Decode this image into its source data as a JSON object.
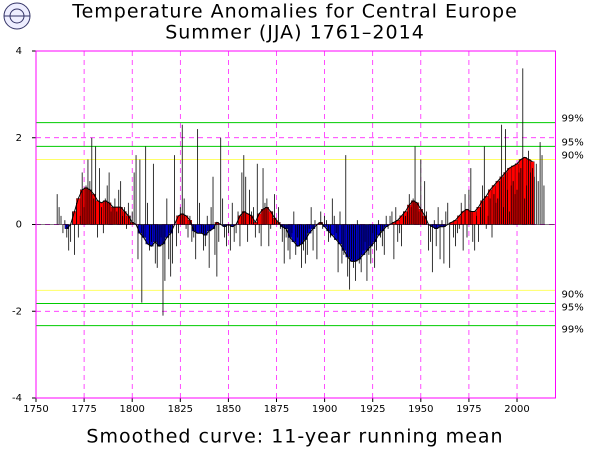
{
  "chart_data": {
    "type": "anomaly-bars",
    "title": "Temperature Anomalies for Central Europe",
    "subtitle": "Summer (JJA) 1761–2014",
    "footer": "Smoothed curve: 11-year running mean",
    "xlim": [
      1750,
      2020
    ],
    "xticks": [
      1750,
      1775,
      1800,
      1825,
      1850,
      1875,
      1900,
      1925,
      1950,
      1975,
      2000
    ],
    "ylim": [
      -4,
      4
    ],
    "yticks": [
      -4,
      -2,
      0,
      2,
      4
    ],
    "grid": true,
    "grid_color": "#ff00ff",
    "frame_color": "#ff00ff",
    "thresholds": [
      {
        "value": 2.35,
        "label": "99%",
        "color": "#00cc00"
      },
      {
        "value": 1.8,
        "label": "95%",
        "color": "#00cc00"
      },
      {
        "value": 1.5,
        "label": "90%",
        "color": "#ffff66"
      },
      {
        "value": -1.52,
        "label": "90%",
        "color": "#ffff66"
      },
      {
        "value": -1.82,
        "label": "95%",
        "color": "#00cc00"
      },
      {
        "value": -2.33,
        "label": "99%",
        "color": "#00cc00"
      }
    ],
    "annual": {
      "color": "#000000",
      "x": [
        1761,
        1762,
        1763,
        1764,
        1765,
        1766,
        1767,
        1768,
        1769,
        1770,
        1771,
        1772,
        1773,
        1774,
        1775,
        1776,
        1777,
        1778,
        1779,
        1780,
        1781,
        1782,
        1783,
        1784,
        1785,
        1786,
        1787,
        1788,
        1789,
        1790,
        1791,
        1792,
        1793,
        1794,
        1795,
        1796,
        1797,
        1798,
        1799,
        1800,
        1801,
        1802,
        1803,
        1804,
        1805,
        1806,
        1807,
        1808,
        1809,
        1810,
        1811,
        1812,
        1813,
        1814,
        1815,
        1816,
        1817,
        1818,
        1819,
        1820,
        1821,
        1822,
        1823,
        1824,
        1825,
        1826,
        1827,
        1828,
        1829,
        1830,
        1831,
        1832,
        1833,
        1834,
        1835,
        1836,
        1837,
        1838,
        1839,
        1840,
        1841,
        1842,
        1843,
        1844,
        1845,
        1846,
        1847,
        1848,
        1849,
        1850,
        1851,
        1852,
        1853,
        1854,
        1855,
        1856,
        1857,
        1858,
        1859,
        1860,
        1861,
        1862,
        1863,
        1864,
        1865,
        1866,
        1867,
        1868,
        1869,
        1870,
        1871,
        1872,
        1873,
        1874,
        1875,
        1876,
        1877,
        1878,
        1879,
        1880,
        1881,
        1882,
        1883,
        1884,
        1885,
        1886,
        1887,
        1888,
        1889,
        1890,
        1891,
        1892,
        1893,
        1894,
        1895,
        1896,
        1897,
        1898,
        1899,
        1900,
        1901,
        1902,
        1903,
        1904,
        1905,
        1906,
        1907,
        1908,
        1909,
        1910,
        1911,
        1912,
        1913,
        1914,
        1915,
        1916,
        1917,
        1918,
        1919,
        1920,
        1921,
        1922,
        1923,
        1924,
        1925,
        1926,
        1927,
        1928,
        1929,
        1930,
        1931,
        1932,
        1933,
        1934,
        1935,
        1936,
        1937,
        1938,
        1939,
        1940,
        1941,
        1942,
        1943,
        1944,
        1945,
        1946,
        1947,
        1948,
        1949,
        1950,
        1951,
        1952,
        1953,
        1954,
        1955,
        1956,
        1957,
        1958,
        1959,
        1960,
        1961,
        1962,
        1963,
        1964,
        1965,
        1966,
        1967,
        1968,
        1969,
        1970,
        1971,
        1972,
        1973,
        1974,
        1975,
        1976,
        1977,
        1978,
        1979,
        1980,
        1981,
        1982,
        1983,
        1984,
        1985,
        1986,
        1987,
        1988,
        1989,
        1990,
        1991,
        1992,
        1993,
        1994,
        1995,
        1996,
        1997,
        1998,
        1999,
        2000,
        2001,
        2002,
        2003,
        2004,
        2005,
        2006,
        2007,
        2008,
        2009,
        2010,
        2011,
        2012,
        2013,
        2014
      ],
      "values": [
        0.7,
        0.4,
        0.2,
        -0.2,
        0.1,
        -0.3,
        -0.6,
        -0.4,
        0.3,
        -0.7,
        0.5,
        -0.3,
        0.2,
        1.2,
        0.4,
        0.9,
        1.5,
        1.0,
        2.0,
        0.6,
        1.8,
        -0.3,
        1.3,
        0.4,
        -0.2,
        0.6,
        0.9,
        1.2,
        0.3,
        0.4,
        0.6,
        0.3,
        0.8,
        1.0,
        0.2,
        0.4,
        -0.1,
        0.5,
        0.2,
        0.3,
        1.2,
        1.6,
        -0.8,
        1.5,
        -1.8,
        -0.3,
        1.8,
        0.5,
        -0.6,
        -0.4,
        1.4,
        -0.9,
        -1.0,
        -0.5,
        -0.3,
        -2.1,
        -1.3,
        0.6,
        -0.8,
        -1.2,
        -0.9,
        1.6,
        -0.5,
        -0.2,
        0.4,
        2.3,
        0.6,
        -0.1,
        -0.3,
        0.2,
        -0.4,
        -0.3,
        -0.8,
        2.2,
        0.5,
        -0.2,
        -0.6,
        -0.5,
        0.2,
        -1.0,
        0.4,
        1.1,
        -0.7,
        -1.2,
        -0.4,
        2.0,
        0.6,
        -0.3,
        -0.5,
        -0.2,
        -0.6,
        0.5,
        -0.4,
        -0.2,
        0.3,
        -0.5,
        1.2,
        1.6,
        1.1,
        -0.4,
        0.8,
        0.3,
        0.4,
        -0.3,
        1.4,
        -0.2,
        -0.5,
        1.3,
        0.5,
        0.6,
        -0.5,
        -0.1,
        0.3,
        0.7,
        0.1,
        0.4,
        -0.1,
        -0.4,
        -0.9,
        -0.3,
        -0.6,
        -0.8,
        -0.2,
        0.3,
        -0.7,
        -0.3,
        -0.5,
        -1.0,
        -0.6,
        -0.9,
        -0.7,
        -0.1,
        0.4,
        -0.6,
        0.1,
        -0.8,
        0.0,
        0.3,
        -0.1,
        0.2,
        0.1,
        -0.4,
        -0.3,
        0.6,
        0.2,
        -0.2,
        -1.1,
        0.3,
        -0.9,
        -0.7,
        1.6,
        -1.2,
        -1.5,
        -0.8,
        -1.0,
        -1.3,
        0.1,
        -0.9,
        -1.1,
        -0.6,
        -0.4,
        -1.3,
        -0.7,
        -0.9,
        -0.2,
        -1.0,
        -0.6,
        0.1,
        -0.3,
        -0.5,
        -0.7,
        0.2,
        -0.1,
        0.2,
        0.3,
        -0.8,
        0.4,
        -0.4,
        -0.2,
        -0.5,
        0.3,
        0.2,
        0.3,
        0.7,
        0.4,
        0.6,
        1.8,
        0.5,
        0.3,
        1.5,
        0.2,
        1.0,
        0.3,
        -0.6,
        -0.4,
        -1.1,
        0.1,
        -0.5,
        0.4,
        -0.8,
        0.1,
        -0.9,
        0.3,
        0.5,
        -1.0,
        0.0,
        -0.3,
        -0.5,
        -0.2,
        -0.1,
        0.5,
        -0.6,
        0.7,
        -0.3,
        0.8,
        1.3,
        -0.4,
        -0.6,
        0.2,
        -0.4,
        0.4,
        0.9,
        1.8,
        -0.1,
        0.2,
        0.6,
        -0.3,
        0.7,
        0.5,
        0.6,
        1.0,
        2.3,
        0.4,
        2.2,
        0.8,
        0.3,
        0.9,
        1.0,
        0.7,
        0.8,
        1.2,
        1.3,
        3.6,
        0.6,
        0.9,
        1.7,
        1.2,
        1.3,
        1.1,
        1.4,
        1.0,
        1.9,
        1.6,
        0.9
      ]
    },
    "smoothed": {
      "color_positive": "#ff0000",
      "color_negative": "#0000cc",
      "line_color": "#000000",
      "x": [
        1766,
        1768,
        1770,
        1772,
        1774,
        1776,
        1778,
        1780,
        1782,
        1784,
        1786,
        1788,
        1790,
        1792,
        1794,
        1796,
        1798,
        1800,
        1802,
        1804,
        1806,
        1808,
        1810,
        1812,
        1814,
        1816,
        1818,
        1820,
        1822,
        1824,
        1826,
        1828,
        1830,
        1832,
        1834,
        1836,
        1838,
        1840,
        1842,
        1844,
        1846,
        1848,
        1850,
        1852,
        1854,
        1856,
        1858,
        1860,
        1862,
        1864,
        1866,
        1868,
        1870,
        1872,
        1874,
        1876,
        1878,
        1880,
        1882,
        1884,
        1886,
        1888,
        1890,
        1892,
        1894,
        1896,
        1898,
        1900,
        1902,
        1904,
        1906,
        1908,
        1910,
        1912,
        1914,
        1916,
        1918,
        1920,
        1922,
        1924,
        1926,
        1928,
        1930,
        1932,
        1934,
        1936,
        1938,
        1940,
        1942,
        1944,
        1946,
        1948,
        1950,
        1952,
        1954,
        1956,
        1958,
        1960,
        1962,
        1964,
        1966,
        1968,
        1970,
        1972,
        1974,
        1976,
        1978,
        1980,
        1982,
        1984,
        1986,
        1988,
        1990,
        1992,
        1994,
        1996,
        1998,
        2000,
        2002,
        2004,
        2006,
        2008
      ],
      "values": [
        -0.1,
        0.0,
        0.3,
        0.6,
        0.8,
        0.85,
        0.8,
        0.7,
        0.55,
        0.5,
        0.55,
        0.5,
        0.4,
        0.4,
        0.4,
        0.3,
        0.2,
        0.05,
        0.0,
        -0.2,
        -0.3,
        -0.45,
        -0.5,
        -0.4,
        -0.5,
        -0.45,
        -0.3,
        -0.2,
        0.0,
        0.2,
        0.25,
        0.2,
        0.1,
        -0.15,
        -0.2,
        -0.2,
        -0.25,
        -0.15,
        -0.1,
        0.05,
        0.0,
        -0.05,
        0.0,
        -0.05,
        0.0,
        0.2,
        0.3,
        0.25,
        0.2,
        0.05,
        0.25,
        0.35,
        0.4,
        0.3,
        0.15,
        0.05,
        -0.05,
        -0.1,
        -0.3,
        -0.4,
        -0.5,
        -0.45,
        -0.35,
        -0.2,
        -0.1,
        0.0,
        0.05,
        -0.05,
        -0.15,
        -0.25,
        -0.35,
        -0.45,
        -0.6,
        -0.75,
        -0.85,
        -0.85,
        -0.8,
        -0.7,
        -0.6,
        -0.5,
        -0.4,
        -0.25,
        -0.15,
        -0.05,
        0.0,
        0.05,
        0.1,
        0.2,
        0.3,
        0.45,
        0.55,
        0.5,
        0.35,
        0.2,
        0.0,
        -0.05,
        -0.1,
        -0.05,
        -0.05,
        0.0,
        0.05,
        0.1,
        0.2,
        0.3,
        0.35,
        0.3,
        0.3,
        0.4,
        0.55,
        0.65,
        0.8,
        0.9,
        1.0,
        1.1,
        1.2,
        1.3,
        1.35,
        1.4,
        1.5,
        1.55,
        1.5,
        1.45
      ]
    }
  }
}
